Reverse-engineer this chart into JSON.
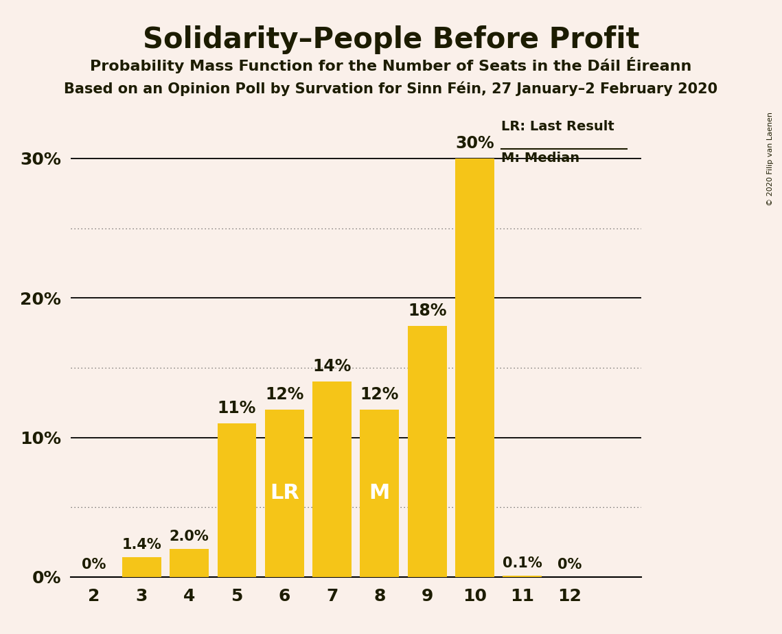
{
  "title": "Solidarity–People Before Profit",
  "subtitle1": "Probability Mass Function for the Number of Seats in the Dáil Éireann",
  "subtitle2": "Based on an Opinion Poll by Survation for Sinn Féin, 27 January–2 February 2020",
  "copyright": "© 2020 Filip van Laenen",
  "categories": [
    2,
    3,
    4,
    5,
    6,
    7,
    8,
    9,
    10,
    11,
    12
  ],
  "values": [
    0.0,
    1.4,
    2.0,
    11.0,
    12.0,
    14.0,
    12.0,
    18.0,
    30.0,
    0.1,
    0.0
  ],
  "bar_color": "#F5C518",
  "bg_color": "#FAF0EA",
  "text_color": "#1C1C00",
  "lr_bar": 6,
  "median_bar": 8,
  "ylim": [
    0,
    35
  ],
  "solid_yticks": [
    0,
    10,
    20,
    30
  ],
  "dotted_yticks": [
    5,
    15,
    25
  ],
  "legend_lr": "LR: Last Result",
  "legend_m": "M: Median"
}
